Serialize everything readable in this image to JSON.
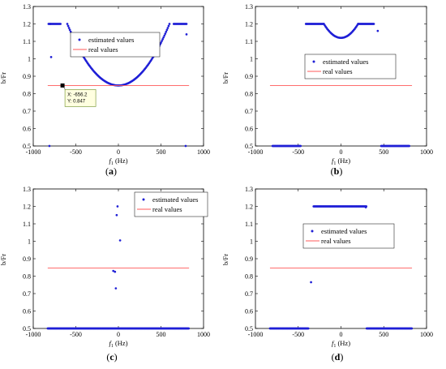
{
  "chart_data": [
    {
      "id": "a",
      "panel_label": "(a)",
      "type": "scatter",
      "xlabel_sym": "f",
      "xlabel_sub": "1",
      "xlabel_unit": " (Hz)",
      "ylabel": "b/Fr",
      "xlim": [
        -1000,
        1000
      ],
      "ylim": [
        0.5,
        1.3
      ],
      "xticks": [
        -1000,
        -500,
        0,
        500,
        1000
      ],
      "yticks": [
        0.5,
        0.6,
        0.7,
        0.8,
        0.9,
        1.0,
        1.1,
        1.2,
        1.3
      ],
      "ytick_labels": [
        "0.5",
        "0.6",
        "0.7",
        "0.8",
        "0.9",
        "1",
        "1.1",
        "1.2",
        "1.3"
      ],
      "legend": {
        "placement": "top-center",
        "estimated": "estimated values",
        "real": "real values"
      },
      "series": [
        {
          "name": "estimated values",
          "style": "blue-dots",
          "generator": "bowl",
          "bowl": {
            "x0": -600,
            "x1": 600,
            "step": 10,
            "y_min": 0.847,
            "y_edge": 1.2,
            "sat_segments": [
              [
                -820,
                -680
              ],
              [
                650,
                800
              ]
            ]
          },
          "extra_points": [
            [
              -800,
              1.2
            ],
            [
              -790,
              1.01
            ],
            [
              -810,
              0.5
            ],
            [
              790,
              0.5
            ],
            [
              800,
              1.14
            ]
          ]
        },
        {
          "name": "real values",
          "style": "red-line",
          "x": [
            -830,
            830
          ],
          "y": [
            0.847,
            0.847
          ]
        }
      ],
      "datatip": {
        "x": -656.2,
        "y": 0.847,
        "x_label": "X: -656.2",
        "y_label": "Y: 0.847"
      }
    },
    {
      "id": "b",
      "panel_label": "(b)",
      "type": "scatter",
      "xlabel_sym": "f",
      "xlabel_sub": "1",
      "xlabel_unit": " (Hz)",
      "ylabel": "b/Fr",
      "xlim": [
        -1000,
        1000
      ],
      "ylim": [
        0.5,
        1.3
      ],
      "xticks": [
        -1000,
        -500,
        0,
        500,
        1000
      ],
      "yticks": [
        0.5,
        0.6,
        0.7,
        0.8,
        0.9,
        1.0,
        1.1,
        1.2,
        1.3
      ],
      "ytick_labels": [
        "0.5",
        "0.6",
        "0.7",
        "0.8",
        "0.9",
        "1",
        "1.1",
        "1.2",
        "1.3"
      ],
      "legend": {
        "placement": "center-right",
        "estimated": "estimated values",
        "real": "real values"
      },
      "series": [
        {
          "name": "estimated values",
          "style": "blue-dots",
          "generator": "notch",
          "notch": {
            "x0": -200,
            "x1": 200,
            "step": 10,
            "y_min": 1.12,
            "y_edge": 1.2
          },
          "segments": [
            {
              "x0": -800,
              "x1": -470,
              "y": 0.5
            },
            {
              "x0": 470,
              "x1": 800,
              "y": 0.5
            },
            {
              "x0": -410,
              "x1": -200,
              "y": 1.2
            },
            {
              "x0": 200,
              "x1": 390,
              "y": 1.2
            }
          ],
          "extra_points": [
            [
              430,
              1.16
            ]
          ]
        },
        {
          "name": "real values",
          "style": "red-line",
          "x": [
            -830,
            830
          ],
          "y": [
            0.847,
            0.847
          ]
        }
      ]
    },
    {
      "id": "c",
      "panel_label": "(c)",
      "type": "scatter",
      "xlabel_sym": "f",
      "xlabel_sub": "1",
      "xlabel_unit": " (Hz)",
      "ylabel": "b/Fr",
      "xlim": [
        -1000,
        1000
      ],
      "ylim": [
        0.5,
        1.3
      ],
      "xticks": [
        -1000,
        -500,
        0,
        500,
        1000
      ],
      "yticks": [
        0.5,
        0.6,
        0.7,
        0.8,
        0.9,
        1.0,
        1.1,
        1.2,
        1.3
      ],
      "ytick_labels": [
        "0.5",
        "0.6",
        "0.7",
        "0.8",
        "0.9",
        "1",
        "1.1",
        "1.2",
        "1.3"
      ],
      "legend": {
        "placement": "top-right",
        "estimated": "estimated values",
        "real": "real values"
      },
      "series": [
        {
          "name": "estimated values",
          "style": "blue-dots",
          "segments": [
            {
              "x0": -830,
              "x1": 830,
              "y": 0.5
            }
          ],
          "extra_points": [
            [
              -60,
              0.83
            ],
            [
              -40,
              0.825
            ],
            [
              -30,
              0.73
            ],
            [
              -20,
              1.15
            ],
            [
              -10,
              1.2
            ],
            [
              20,
              1.005
            ]
          ]
        },
        {
          "name": "real values",
          "style": "red-line",
          "x": [
            -830,
            830
          ],
          "y": [
            0.847,
            0.847
          ]
        }
      ]
    },
    {
      "id": "d",
      "panel_label": "(d)",
      "type": "scatter",
      "xlabel_sym": "f",
      "xlabel_sub": "1",
      "xlabel_unit": " (Hz)",
      "ylabel": "b/Fr",
      "xlim": [
        -1000,
        1000
      ],
      "ylim": [
        0.5,
        1.3
      ],
      "xticks": [
        -1000,
        -500,
        0,
        500,
        1000
      ],
      "yticks": [
        0.5,
        0.6,
        0.7,
        0.8,
        0.9,
        1.0,
        1.1,
        1.2,
        1.3
      ],
      "ytick_labels": [
        "0.5",
        "0.6",
        "0.7",
        "0.8",
        "0.9",
        "1",
        "1.1",
        "1.2",
        "1.3"
      ],
      "legend": {
        "placement": "center-right",
        "estimated": "estimated values",
        "real": "real values"
      },
      "series": [
        {
          "name": "estimated values",
          "style": "blue-dots",
          "segments": [
            {
              "x0": -830,
              "x1": -380,
              "y": 0.5
            },
            {
              "x0": 300,
              "x1": 830,
              "y": 0.5
            },
            {
              "x0": -320,
              "x1": 300,
              "y": 1.2
            }
          ],
          "extra_points": [
            [
              -350,
              0.765
            ],
            [
              290,
              1.195
            ]
          ]
        },
        {
          "name": "real values",
          "style": "red-line",
          "x": [
            -830,
            830
          ],
          "y": [
            0.847,
            0.847
          ]
        }
      ]
    }
  ],
  "colors": {
    "estimated": "#1f1fd6",
    "real": "#ff5a5a",
    "datatip_bg": "#ffffe0",
    "datatip_border": "#6b8e23"
  }
}
